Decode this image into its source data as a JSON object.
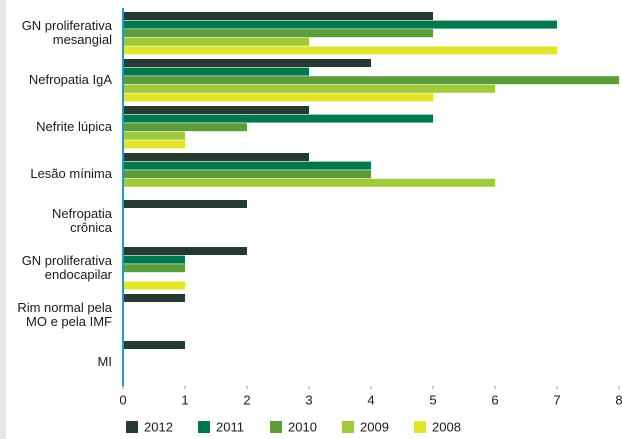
{
  "chart_data": {
    "type": "bar",
    "orientation": "horizontal",
    "categories": [
      [
        "GN proliferativa",
        "mesangial"
      ],
      [
        "Nefropatia IgA"
      ],
      [
        "Nefrite lúpica"
      ],
      [
        "Lesão mínima"
      ],
      [
        "Nefropatia",
        "crônica"
      ],
      [
        "GN proliferativa",
        "endocapilar"
      ],
      [
        "Rim normal pela",
        "MO e pela IMF"
      ],
      [
        "MI"
      ]
    ],
    "series": [
      {
        "name": "2012",
        "color": "#263a30",
        "values": [
          5,
          4,
          3,
          3,
          2,
          2,
          1,
          1
        ]
      },
      {
        "name": "2011",
        "color": "#00774d",
        "values": [
          7,
          3,
          5,
          4,
          0,
          1,
          0,
          0
        ]
      },
      {
        "name": "2010",
        "color": "#5c9c3a",
        "values": [
          5,
          8,
          2,
          4,
          0,
          1,
          0,
          0
        ]
      },
      {
        "name": "2009",
        "color": "#9fcb3b",
        "values": [
          3,
          6,
          1,
          6,
          0,
          0,
          0,
          0
        ]
      },
      {
        "name": "2008",
        "color": "#e2e42a",
        "values": [
          7,
          5,
          1,
          0,
          0,
          1,
          0,
          0
        ]
      }
    ],
    "xlim": [
      0,
      8
    ],
    "xticks": [
      0,
      1,
      2,
      3,
      4,
      5,
      6,
      7,
      8
    ],
    "grid": false,
    "legend": "bottom"
  }
}
